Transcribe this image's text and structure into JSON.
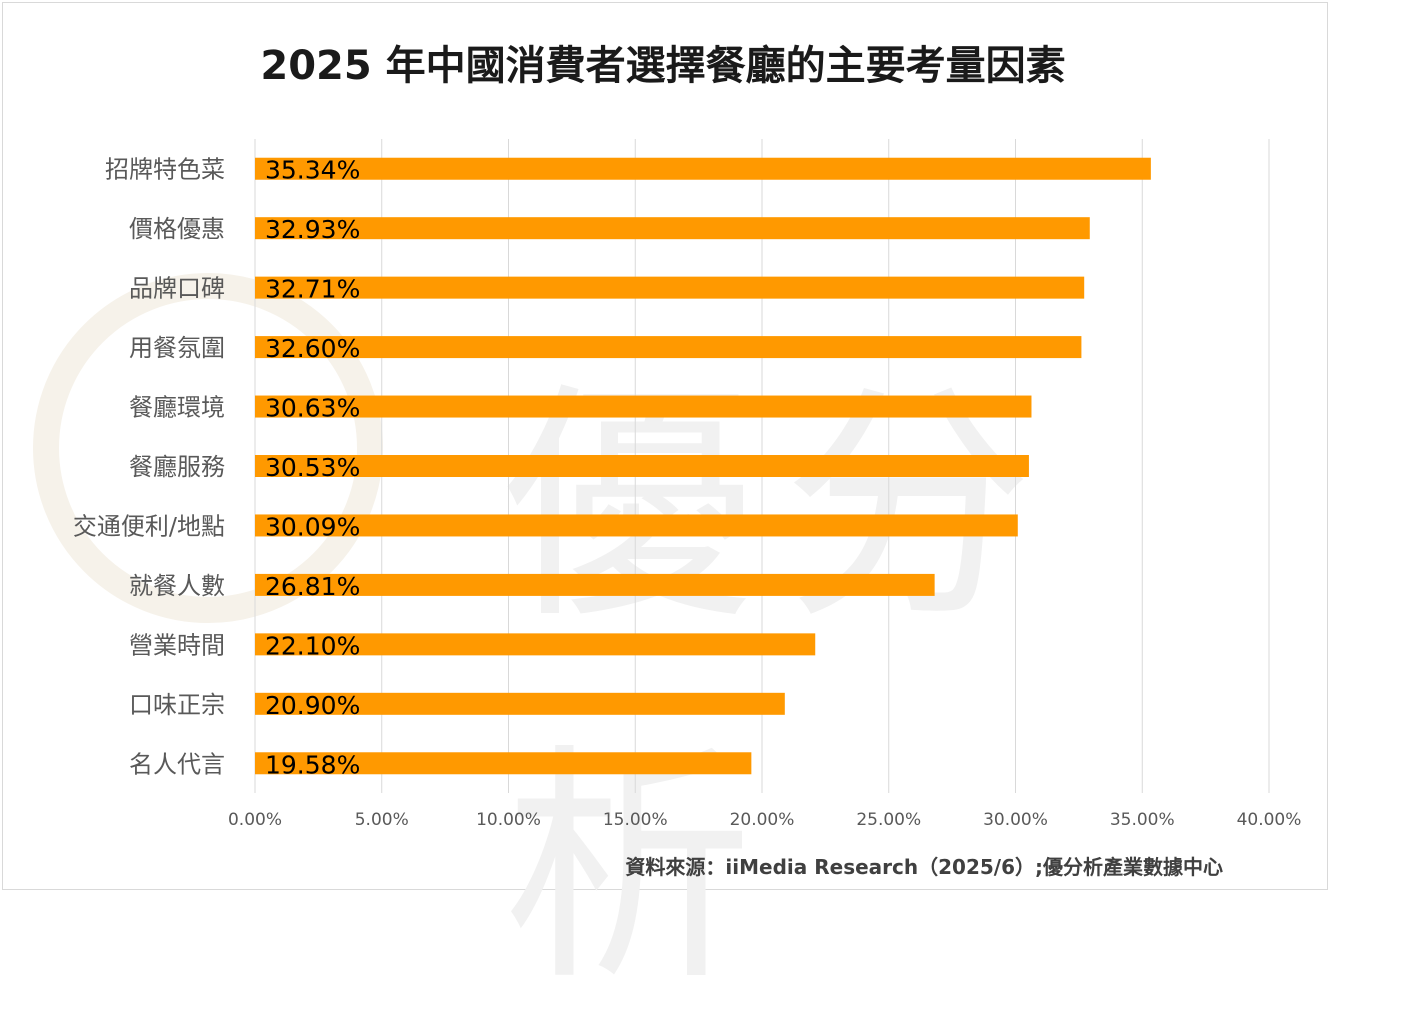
{
  "chart_data": {
    "type": "bar",
    "orientation": "horizontal",
    "title": "2025 年中國消費者選擇餐廳的主要考量因素",
    "categories": [
      "招牌特色菜",
      "價格優惠",
      "品牌口碑",
      "用餐氛圍",
      "餐廳環境",
      "餐廳服務",
      "交通便利/地點",
      "就餐人數",
      "營業時間",
      "口味正宗",
      "名人代言"
    ],
    "values": [
      35.34,
      32.93,
      32.71,
      32.6,
      30.63,
      30.53,
      30.09,
      26.81,
      22.1,
      20.9,
      19.58
    ],
    "data_labels": [
      "35.34%",
      "32.93%",
      "32.71%",
      "32.60%",
      "30.63%",
      "30.53%",
      "30.09%",
      "26.81%",
      "22.10%",
      "20.90%",
      "19.58%"
    ],
    "xlim": [
      0,
      40
    ],
    "xticks": [
      0,
      5,
      10,
      15,
      20,
      25,
      30,
      35,
      40
    ],
    "xtick_labels": [
      "0.00%",
      "5.00%",
      "10.00%",
      "15.00%",
      "20.00%",
      "25.00%",
      "30.00%",
      "35.00%",
      "40.00%"
    ],
    "xlabel": "",
    "ylabel": "",
    "grid": "vertical",
    "bar_color": "#ff9900",
    "grid_color": "#d9d9d9",
    "label_color": "#595959"
  },
  "source": "資料來源：iiMedia Research（2025/6）;優分析產業數據中心",
  "watermark": "優分析"
}
